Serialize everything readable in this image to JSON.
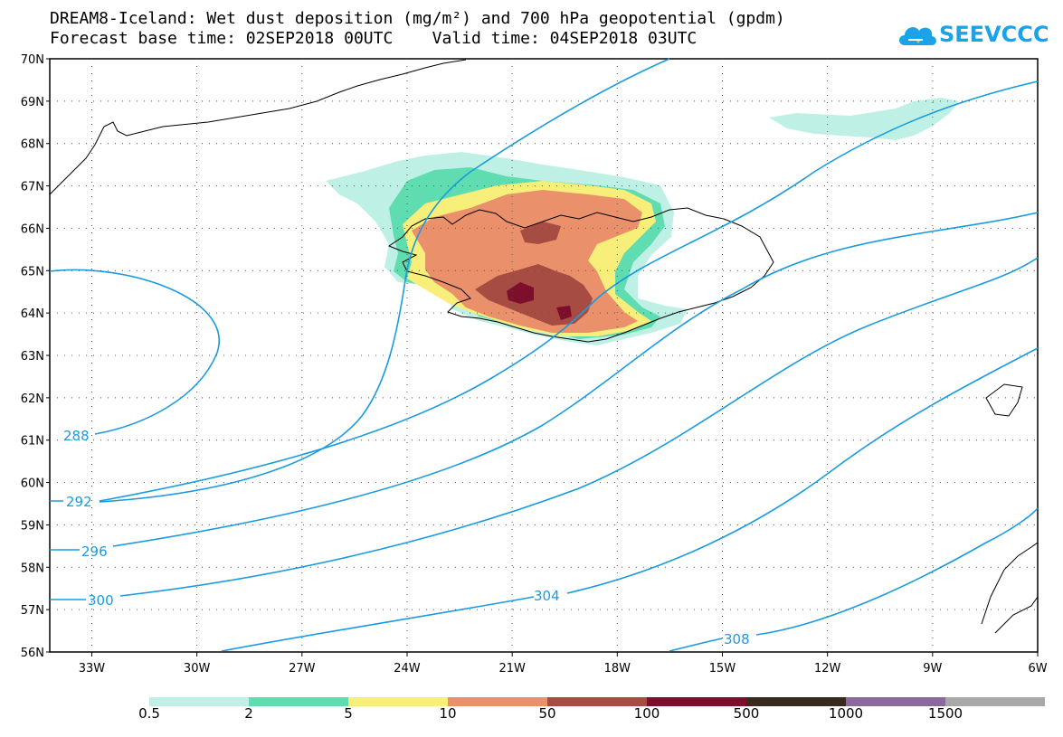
{
  "header": {
    "title_line1": "DREAM8-Iceland: Wet dust deposition (mg/m²) and 700 hPa geopotential (gpdm)",
    "title_line2": "Forecast base time: 02SEP2018 00UTC    Valid time: 04SEP2018 03UTC",
    "logo_text": "SEEVCCC",
    "logo_icon": "cloud-icon"
  },
  "map": {
    "lat_labels": [
      "70N",
      "69N",
      "68N",
      "67N",
      "66N",
      "65N",
      "64N",
      "63N",
      "62N",
      "61N",
      "60N",
      "59N",
      "58N",
      "57N",
      "56N"
    ],
    "lon_labels": [
      "33W",
      "30W",
      "27W",
      "24W",
      "21W",
      "18W",
      "15W",
      "12W",
      "9W",
      "6W"
    ],
    "lat_range": [
      56,
      70
    ],
    "lon_range": [
      -34.2,
      -6
    ],
    "grid": "dotted",
    "contour_labels": [
      "288",
      "292",
      "296",
      "300",
      "304",
      "308"
    ],
    "contour_color": "#1a9be0"
  },
  "colorbar": {
    "labels": [
      "0.5",
      "2",
      "5",
      "10",
      "50",
      "100",
      "500",
      "1000",
      "1500"
    ],
    "colors": [
      "#bff0e6",
      "#5fdcb0",
      "#f7ef7a",
      "#ea906a",
      "#a64c42",
      "#7d0e2c",
      "#3a2a1e",
      "#8a6a9c",
      "#a8a8a8"
    ]
  }
}
